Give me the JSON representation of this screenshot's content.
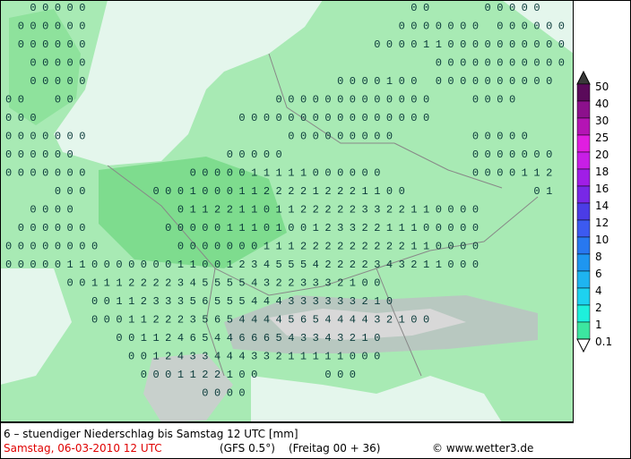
{
  "map": {
    "rows": [
      "  00000                          00    00000  ",
      " 000000                         0000000 000000",
      " 000000                       0000110000000000",
      "  00000                            00000000000",
      "  00000                    0000100 0000000000 ",
      "00  00                0000000000000   0000    ",
      "000                0000000000000000           ",
      "0000000                000000000      00000   ",
      "000000            00000               0000000 ",
      "0000000        0000011111000000       0000112 ",
      "    000     000100011222212221100          01 ",
      "  0000        0112211011222223322110000       ",
      " 000000      00000111010012332211100000       ",
      "00000000      0000000111222222222110000       ",
      "000001100000001100123455542222343211000       ",
      "     00111222234555543223332100               ",
      "       0011233356555444333333210              ",
      "       0001122235654444565444432100           ",
      "         0011246544666543343210               ",
      "          001243344433211111000                ",
      "           0001122100     000                 ",
      "                0000                          "
    ]
  },
  "legend": {
    "labels": [
      "50",
      "40",
      "30",
      "25",
      "20",
      "18",
      "16",
      "14",
      "12",
      "10",
      "8",
      "6",
      "4",
      "2",
      "1",
      "0.1"
    ],
    "colors": [
      "#3a3a3a",
      "#5a0a5a",
      "#8c108c",
      "#b414b4",
      "#e01ee0",
      "#c81ee6",
      "#a01ee6",
      "#7828e6",
      "#4b3ce6",
      "#3c5af0",
      "#2878f0",
      "#1e96f0",
      "#1eb4f0",
      "#1ed2f0",
      "#1ef0dc",
      "#3ce6a0"
    ]
  },
  "footer": {
    "title": "6 – stuendiger Niederschlag bis Samstag 12 UTC [mm]",
    "date": "Samstag, 06-03-2010  12 UTC",
    "model": "(GFS 0.5°)",
    "run": "(Freitag 00 + 36)",
    "credit": "© www.wetter3.de"
  }
}
